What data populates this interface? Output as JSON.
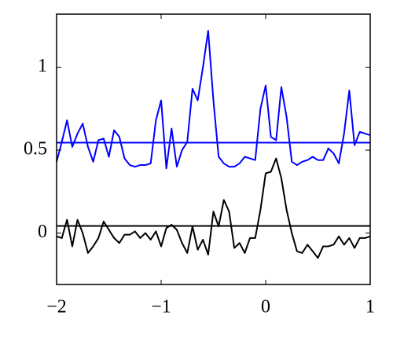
{
  "chart_data": {
    "type": "line",
    "x": [
      -2.0,
      -1.95,
      -1.9,
      -1.85,
      -1.8,
      -1.75,
      -1.7,
      -1.65,
      -1.6,
      -1.55,
      -1.5,
      -1.45,
      -1.4,
      -1.35,
      -1.3,
      -1.25,
      -1.2,
      -1.15,
      -1.1,
      -1.05,
      -1.0,
      -0.95,
      -0.9,
      -0.85,
      -0.8,
      -0.75,
      -0.7,
      -0.65,
      -0.6,
      -0.55,
      -0.5,
      -0.45,
      -0.4,
      -0.35,
      -0.3,
      -0.25,
      -0.2,
      -0.15,
      -0.1,
      -0.05,
      0.0,
      0.05,
      0.1,
      0.15,
      0.2,
      0.25,
      0.3,
      0.35,
      0.4,
      0.45,
      0.5,
      0.55,
      0.6,
      0.65,
      0.7,
      0.75,
      0.8,
      0.85,
      0.9,
      0.95,
      1.0
    ],
    "series": [
      {
        "color": "#0000ff",
        "values": [
          0.43,
          0.55,
          0.68,
          0.52,
          0.6,
          0.66,
          0.52,
          0.43,
          0.56,
          0.57,
          0.46,
          0.62,
          0.58,
          0.45,
          0.41,
          0.4,
          0.41,
          0.41,
          0.42,
          0.68,
          0.8,
          0.39,
          0.63,
          0.4,
          0.5,
          0.55,
          0.87,
          0.8,
          1.0,
          1.22,
          0.8,
          0.46,
          0.42,
          0.4,
          0.4,
          0.42,
          0.46,
          0.45,
          0.44,
          0.75,
          0.89,
          0.58,
          0.56,
          0.88,
          0.7,
          0.43,
          0.41,
          0.43,
          0.44,
          0.46,
          0.44,
          0.44,
          0.51,
          0.48,
          0.42,
          0.6,
          0.86,
          0.53,
          0.61,
          0.6,
          0.59
        ]
      },
      {
        "color": "#000000",
        "values": [
          -0.02,
          -0.03,
          0.08,
          -0.08,
          0.08,
          0.0,
          -0.12,
          -0.08,
          -0.03,
          0.07,
          0.02,
          -0.03,
          -0.06,
          -0.01,
          -0.01,
          0.01,
          -0.03,
          0.0,
          -0.04,
          0.01,
          -0.08,
          0.03,
          0.05,
          0.02,
          -0.06,
          -0.12,
          0.04,
          -0.1,
          -0.04,
          -0.13,
          0.13,
          0.04,
          0.2,
          0.13,
          -0.09,
          -0.06,
          -0.12,
          -0.03,
          -0.03,
          0.14,
          0.36,
          0.37,
          0.45,
          0.33,
          0.14,
          0.0,
          -0.11,
          -0.12,
          -0.07,
          -0.11,
          -0.15,
          -0.08,
          -0.08,
          -0.07,
          -0.02,
          -0.07,
          -0.03,
          -0.09,
          -0.03,
          -0.03,
          -0.02
        ]
      }
    ],
    "reference_lines": [
      {
        "value": 0.545,
        "color": "#0000ff"
      },
      {
        "value": 0.043,
        "color": "#000000"
      }
    ],
    "xlim": [
      -2,
      1
    ],
    "xticks": [
      {
        "value": -2,
        "label": "−2"
      },
      {
        "value": -1,
        "label": "−1"
      },
      0,
      1
    ],
    "ylim": [
      -0.31,
      1.32
    ],
    "yticks": [
      0,
      0.5,
      1
    ]
  }
}
